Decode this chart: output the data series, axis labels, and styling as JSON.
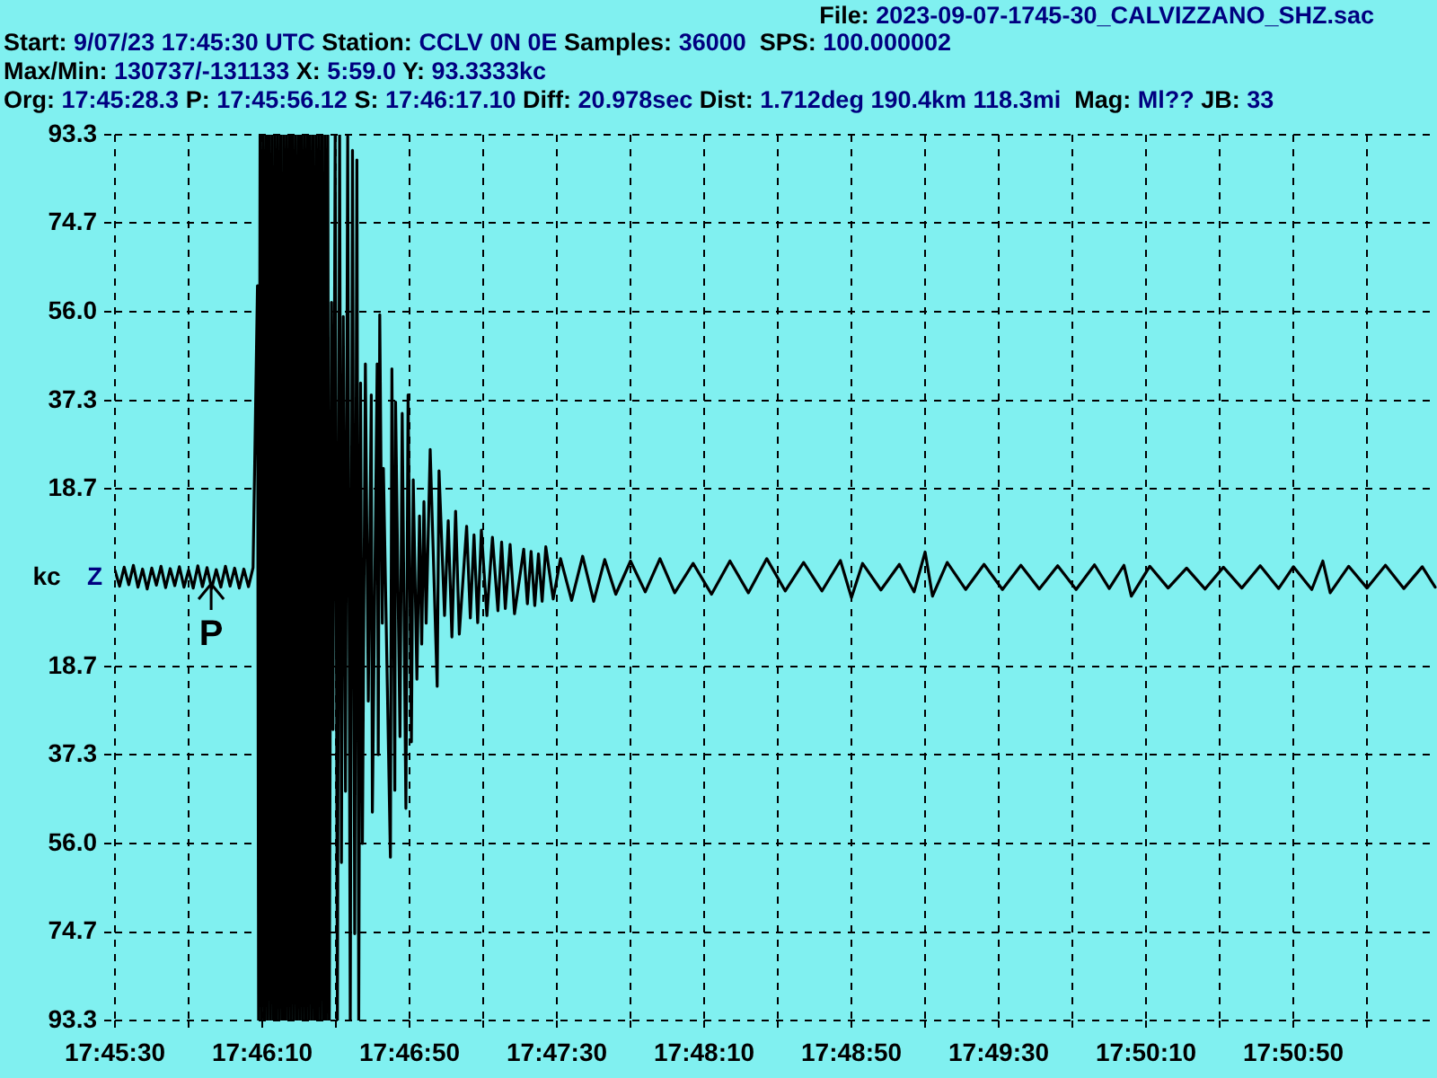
{
  "chart_data": {
    "type": "line",
    "title": "File: 2023-09-07-1745-30_CALVIZZANO_SHZ.sac",
    "annotations": [
      "Start: 9/07/23 17:45:30 UTC Station: CCLV 0N 0E Samples: 36000  SPS: 100.000002",
      "Max/Min: 130737/-131133 X: 5:59.0 Y: 93.3333kc",
      "Org: 17:45:28.3 P: 17:45:56.12 S: 17:46:17.10 Diff: 20.978sec Dist: 1.712deg 190.4km 118.3mi  Mag: Ml?? JB: 33",
      {
        "text": "P",
        "x": 17.765589,
        "y": 0
      }
    ],
    "ylabel": "kc",
    "x": [
      17.758333,
      17.758681,
      17.759028,
      17.759375,
      17.759722,
      17.760069,
      17.760417,
      17.760764,
      17.761111,
      17.761458,
      17.761806,
      17.762153,
      17.7625,
      17.762847,
      17.763194,
      17.763542,
      17.763889,
      17.764236,
      17.764583,
      17.764931,
      17.765278,
      17.765625,
      17.765972,
      17.766319,
      17.766667,
      17.767014,
      17.767361,
      17.767708,
      17.768056,
      17.768403,
      17.76875,
      17.769083,
      17.769167,
      17.769278,
      17.769389,
      17.7695,
      17.769611,
      17.769722,
      17.769833,
      17.769944,
      17.770056,
      17.770167,
      17.770278,
      17.770389,
      17.7705,
      17.770611,
      17.770722,
      17.770833,
      17.770944,
      17.771056,
      17.771167,
      17.771278,
      17.771389,
      17.7715,
      17.771611,
      17.771722,
      17.771833,
      17.771944,
      17.772056,
      17.772167,
      17.772278,
      17.772389,
      17.7725,
      17.772611,
      17.772722,
      17.772833,
      17.772944,
      17.773056,
      17.773167,
      17.773278,
      17.773389,
      17.7735,
      17.773611,
      17.773722,
      17.773833,
      17.773944,
      17.774056,
      17.774167,
      17.774278,
      17.774389,
      17.7745,
      17.774667,
      17.774778,
      17.774944,
      17.775111,
      17.775278,
      17.775417,
      17.775556,
      17.775722,
      17.775889,
      17.776083,
      17.77625,
      17.776417,
      17.776583,
      17.776722,
      17.776861,
      17.777,
      17.777222,
      17.777444,
      17.777667,
      17.77775,
      17.778111,
      17.778194,
      17.778306,
      17.7785,
      17.778583,
      17.779111,
      17.779222,
      17.779444,
      17.7795,
      17.779833,
      17.78,
      17.780278,
      17.780444,
      17.780694,
      17.780833,
      17.781111,
      17.781306,
      17.781472,
      17.781639,
      17.781806,
      17.782111,
      17.782639,
      17.782778,
      17.783194,
      17.783472,
      17.78375,
      17.784028,
      17.784306,
      17.784861,
      17.785139,
      17.785417,
      17.785694,
      17.785972,
      17.786389,
      17.786806,
      17.787222,
      17.7875,
      17.787778,
      17.788139,
      17.788472,
      17.789167,
      17.789444,
      17.789722,
      17.79,
      17.790278,
      17.790556,
      17.790833,
      17.791389,
      17.791944,
      17.792778,
      17.793611,
      17.794444,
      17.795278,
      17.796111,
      17.797222,
      17.798333,
      17.799444,
      17.800556,
      17.801944,
      17.803333,
      17.804722,
      17.806111,
      17.8075,
      17.808889,
      17.810278,
      17.811667,
      17.813056,
      17.813889,
      17.814722,
      17.816111,
      17.8175,
      17.818611,
      17.819444,
      17.82,
      17.821111,
      17.8225,
      17.823889,
      17.825278,
      17.826667,
      17.828056,
      17.829444,
      17.830833,
      17.832222,
      17.833333,
      17.834444,
      17.835,
      17.836389,
      17.837778,
      17.839167,
      17.840556,
      17.841944,
      17.843333,
      17.844722,
      17.846111,
      17.847222,
      17.848611,
      17.849444,
      17.85,
      17.851389,
      17.852778,
      17.854167,
      17.855556,
      17.856944,
      17.857917
    ],
    "series": [
      {
        "name": "Z",
        "color": "#000000",
        "values": [
          1.5,
          -1.8,
          2.2,
          -1.5,
          2.6,
          -2.0,
          1.8,
          -2.4,
          2.0,
          -1.6,
          2.4,
          -2.1,
          1.9,
          -1.7,
          2.3,
          -2.0,
          1.6,
          -2.2,
          2.5,
          -1.9,
          2.1,
          -2.3,
          1.7,
          -2.0,
          2.4,
          -1.8,
          2.0,
          -2.2,
          1.8,
          -1.9,
          2.1,
          61.5,
          -93.3,
          93.3,
          -93.3,
          93.3,
          -93.3,
          93.3,
          -93.3,
          93.3,
          -93.3,
          93.3,
          -93.3,
          93.3,
          -93.3,
          93.3,
          -93.3,
          93.3,
          -93.3,
          93.3,
          -93.3,
          93.3,
          -93.3,
          93.3,
          -93.3,
          93.3,
          -93.3,
          93.3,
          -93.3,
          93.3,
          -93.3,
          93.3,
          -93.3,
          93.3,
          -93.3,
          93.3,
          -93.3,
          93.3,
          -93.3,
          93.3,
          -93.3,
          93.3,
          -93.3,
          93.3,
          -93.3,
          93.3,
          -93.3,
          93.3,
          -93.3,
          93.3,
          -93.3,
          58,
          -32,
          93.3,
          -93.3,
          93.3,
          -60,
          55,
          -45,
          93.3,
          -93.3,
          90,
          -75,
          88,
          -93.3,
          41,
          -56,
          45,
          -26,
          38.5,
          -49.4,
          45,
          -37.3,
          55.4,
          -9.6,
          23,
          -58.9,
          44,
          -44.8,
          37,
          -33.5,
          34.6,
          -48.6,
          38.5,
          -34.6,
          20.6,
          -21.4,
          13,
          -14,
          16,
          -9.6,
          27,
          -22.9,
          22.5,
          -8,
          12,
          -12.5,
          14,
          -11.9,
          10.8,
          -8.5,
          9,
          -9.5,
          10,
          -8,
          8.5,
          -7,
          7.5,
          -6.5,
          7,
          -7.6,
          6,
          -5.5,
          5.5,
          -5.9,
          5,
          -5,
          6.5,
          -4.5,
          4.0,
          -4.8,
          4.5,
          -5.0,
          3.8,
          -3.5,
          3.5,
          -3.0,
          4.0,
          -3.2,
          3.0,
          -3.5,
          3.5,
          -3.2,
          4.0,
          -2.8,
          3.2,
          -2.8,
          3.6,
          -4.2,
          3.0,
          -2.6,
          2.8,
          -3.0,
          5.4,
          -3.9,
          3.2,
          -2.5,
          2.8,
          -2.5,
          2.6,
          -2.4,
          2.5,
          -2.5,
          2.7,
          -2.3,
          2.6,
          -3.9,
          2.4,
          -2.2,
          2.0,
          -2.4,
          2.2,
          -2.2,
          2.5,
          -2.3,
          2.3,
          -2.5,
          3.5,
          -3.2,
          2.4,
          -2.2,
          2.6,
          -2.3,
          2.3,
          -2.0
        ]
      }
    ],
    "xlim": [
      17.758333,
      17.858056
    ],
    "xticks": [
      {
        "value": 17.758333,
        "label": "17:45:30"
      },
      {
        "value": 17.763889,
        "label": null
      },
      {
        "value": 17.769444,
        "label": "17:46:10"
      },
      {
        "value": 17.775,
        "label": null
      },
      {
        "value": 17.780556,
        "label": "17:46:50"
      },
      {
        "value": 17.786111,
        "label": null
      },
      {
        "value": 17.791667,
        "label": "17:47:30"
      },
      {
        "value": 17.797222,
        "label": null
      },
      {
        "value": 17.802778,
        "label": "17:48:10"
      },
      {
        "value": 17.808333,
        "label": null
      },
      {
        "value": 17.813889,
        "label": "17:48:50"
      },
      {
        "value": 17.819444,
        "label": null
      },
      {
        "value": 17.825,
        "label": "17:49:30"
      },
      {
        "value": 17.830556,
        "label": null
      },
      {
        "value": 17.836111,
        "label": "17:50:10"
      },
      {
        "value": 17.841667,
        "label": null
      },
      {
        "value": 17.847222,
        "label": "17:50:50"
      },
      {
        "value": 17.852778,
        "label": null
      }
    ],
    "ylim": [
      -93.3,
      93.3
    ],
    "yticks": [
      {
        "value": -93.3,
        "label": "93.3"
      },
      {
        "value": -74.7,
        "label": "74.7"
      },
      {
        "value": -56,
        "label": "56.0"
      },
      {
        "value": -37.3,
        "label": "37.3"
      },
      {
        "value": -18.7,
        "label": "18.7"
      },
      18.7,
      37.3,
      {
        "value": 56,
        "label": "56.0"
      },
      74.7,
      93.3
    ],
    "grid": true
  }
}
